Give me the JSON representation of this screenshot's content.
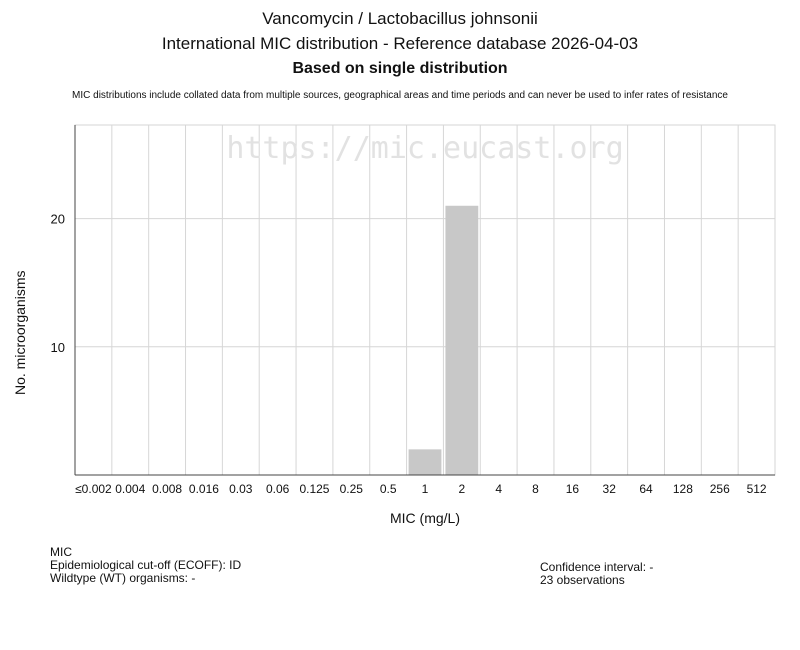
{
  "header": {
    "title_line1": "Vancomycin / Lactobacillus johnsonii",
    "title_line2": "International MIC distribution - Reference database 2026-04-03",
    "title_line3": "Based on single distribution",
    "note": "MIC distributions include collated data from multiple sources, geographical areas and time periods and can never be used to infer rates of resistance"
  },
  "watermark": "https://mic.eucast.org",
  "colors": {
    "bar": "#c8c8c8",
    "grid": "#d6d6d6",
    "watermark": "#e2e2e2",
    "axis": "#444444"
  },
  "chart_data": {
    "type": "bar",
    "categories": [
      "≤0.002",
      "0.004",
      "0.008",
      "0.016",
      "0.03",
      "0.06",
      "0.125",
      "0.25",
      "0.5",
      "1",
      "2",
      "4",
      "8",
      "16",
      "32",
      "64",
      "128",
      "256",
      "512"
    ],
    "values": [
      0,
      0,
      0,
      0,
      0,
      0,
      0,
      0,
      0,
      2,
      21,
      0,
      0,
      0,
      0,
      0,
      0,
      0,
      0
    ],
    "xlabel": "MIC (mg/L)",
    "ylabel": "No. microorganisms",
    "ylim": [
      0,
      27.3
    ],
    "yticks": [
      10,
      20
    ],
    "grid": true
  },
  "footer": {
    "left_line1": "MIC",
    "left_line2": "Epidemiological cut-off (ECOFF): ID",
    "left_line3": "Wildtype (WT) organisms:  -",
    "right_line1": "Confidence interval: -",
    "right_line2": "23 observations"
  }
}
